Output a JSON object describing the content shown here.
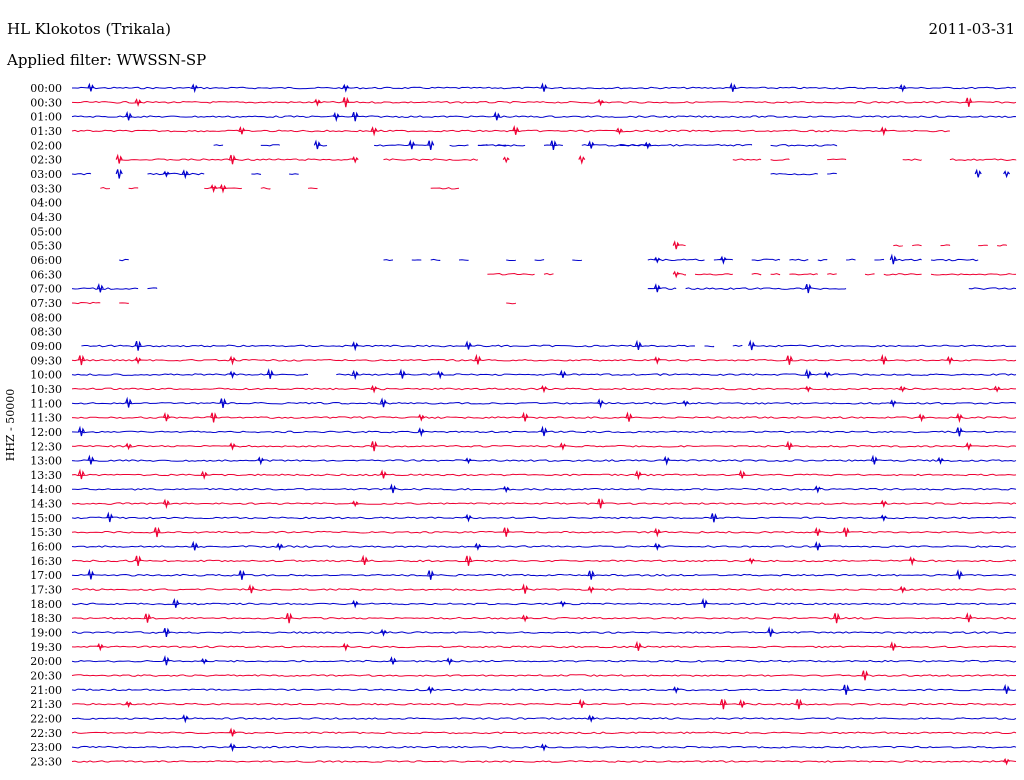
{
  "header": {
    "station": "HL Klokotos (Trikala)",
    "date": "2011-03-31",
    "filter": "Applied filter: WWSSN-SP"
  },
  "chart_data": {
    "type": "line",
    "title": "HL Klokotos (Trikala)",
    "channel_label": "HHZ - 50000",
    "ylabel": "HHZ - 50000",
    "xlabel": "",
    "colors": [
      "#0000cc",
      "#ee0033"
    ],
    "rows": [
      {
        "time": "00:00",
        "color": "#0000cc",
        "segments": [
          [
            0,
            1
          ]
        ],
        "events": [
          0.02,
          0.13,
          0.29,
          0.5,
          0.7,
          0.88
        ]
      },
      {
        "time": "00:30",
        "color": "#ee0033",
        "segments": [
          [
            0,
            1
          ]
        ],
        "events": [
          0.07,
          0.26,
          0.29,
          0.56,
          0.95
        ]
      },
      {
        "time": "01:00",
        "color": "#0000cc",
        "segments": [
          [
            0,
            1
          ]
        ],
        "events": [
          0.06,
          0.28,
          0.3,
          0.45
        ]
      },
      {
        "time": "01:30",
        "color": "#ee0033",
        "segments": [
          [
            0,
            0.93
          ]
        ],
        "events": [
          0.18,
          0.32,
          0.47,
          0.58,
          0.86
        ]
      },
      {
        "time": "02:00",
        "color": "#0000cc",
        "segments": [
          [
            0.15,
            0.16
          ],
          [
            0.2,
            0.22
          ],
          [
            0.26,
            0.27
          ],
          [
            0.32,
            0.38
          ],
          [
            0.4,
            0.42
          ],
          [
            0.43,
            0.44
          ],
          [
            0.45,
            0.46
          ],
          [
            0.43,
            0.48
          ],
          [
            0.5,
            0.52
          ],
          [
            0.54,
            0.61
          ],
          [
            0.58,
            0.72
          ],
          [
            0.74,
            0.81
          ]
        ],
        "events": [
          0.26,
          0.36,
          0.38,
          0.51,
          0.55,
          0.61
        ]
      },
      {
        "time": "02:30",
        "color": "#ee0033",
        "segments": [
          [
            0.05,
            0.3
          ],
          [
            0.33,
            0.43
          ],
          [
            0.7,
            0.73
          ],
          [
            0.74,
            0.76
          ],
          [
            0.8,
            0.82
          ],
          [
            0.88,
            0.9
          ],
          [
            0.93,
            1
          ]
        ],
        "events": [
          0.05,
          0.17,
          0.3,
          0.46,
          0.54
        ]
      },
      {
        "time": "03:00",
        "color": "#0000cc",
        "segments": [
          [
            0,
            0.02
          ],
          [
            0.08,
            0.14
          ],
          [
            0.19,
            0.2
          ],
          [
            0.23,
            0.24
          ],
          [
            0.74,
            0.79
          ],
          [
            0.8,
            0.81
          ]
        ],
        "events": [
          0.05,
          0.1,
          0.12,
          0.96,
          0.99
        ]
      },
      {
        "time": "03:30",
        "color": "#ee0033",
        "segments": [
          [
            0.03,
            0.04
          ],
          [
            0.06,
            0.07
          ],
          [
            0.14,
            0.18
          ],
          [
            0.2,
            0.21
          ],
          [
            0.25,
            0.26
          ],
          [
            0.38,
            0.41
          ]
        ],
        "events": [
          0.15,
          0.16
        ]
      },
      {
        "time": "04:00",
        "color": "#0000cc",
        "segments": [],
        "events": []
      },
      {
        "time": "04:30",
        "color": "#ee0033",
        "segments": [],
        "events": []
      },
      {
        "time": "05:00",
        "color": "#0000cc",
        "segments": [],
        "events": []
      },
      {
        "time": "05:30",
        "color": "#ee0033",
        "segments": [
          [
            0.64,
            0.65
          ],
          [
            0.87,
            0.88
          ],
          [
            0.89,
            0.9
          ],
          [
            0.92,
            0.93
          ],
          [
            0.96,
            0.97
          ],
          [
            0.98,
            0.99
          ]
        ],
        "events": [
          0.64
        ]
      },
      {
        "time": "06:00",
        "color": "#0000cc",
        "segments": [
          [
            0.05,
            0.06
          ],
          [
            0.33,
            0.34
          ],
          [
            0.36,
            0.37
          ],
          [
            0.38,
            0.39
          ],
          [
            0.41,
            0.42
          ],
          [
            0.46,
            0.47
          ],
          [
            0.49,
            0.5
          ],
          [
            0.53,
            0.54
          ],
          [
            0.61,
            0.67
          ],
          [
            0.68,
            0.7
          ],
          [
            0.72,
            0.75
          ],
          [
            0.76,
            0.78
          ],
          [
            0.79,
            0.8
          ],
          [
            0.82,
            0.83
          ],
          [
            0.85,
            0.86
          ],
          [
            0.87,
            0.9
          ],
          [
            0.91,
            0.96
          ]
        ],
        "events": [
          0.62,
          0.69,
          0.87
        ]
      },
      {
        "time": "06:30",
        "color": "#ee0033",
        "segments": [
          [
            0.44,
            0.49
          ],
          [
            0.5,
            0.51
          ],
          [
            0.64,
            0.65
          ],
          [
            0.66,
            0.7
          ],
          [
            0.72,
            0.73
          ],
          [
            0.74,
            0.75
          ],
          [
            0.76,
            0.79
          ],
          [
            0.8,
            0.81
          ],
          [
            0.84,
            0.85
          ],
          [
            0.86,
            0.9
          ],
          [
            0.91,
            1
          ]
        ],
        "events": [
          0.64
        ]
      },
      {
        "time": "07:00",
        "color": "#0000cc",
        "segments": [
          [
            0,
            0.07
          ],
          [
            0.08,
            0.09
          ],
          [
            0.61,
            0.64
          ],
          [
            0.65,
            0.82
          ],
          [
            0.95,
            1
          ]
        ],
        "events": [
          0.03,
          0.62,
          0.78
        ]
      },
      {
        "time": "07:30",
        "color": "#ee0033",
        "segments": [
          [
            0,
            0.03
          ],
          [
            0.05,
            0.06
          ],
          [
            0.46,
            0.47
          ]
        ],
        "events": []
      },
      {
        "time": "08:00",
        "color": "#0000cc",
        "segments": [],
        "events": []
      },
      {
        "time": "08:30",
        "color": "#ee0033",
        "segments": [],
        "events": []
      },
      {
        "time": "09:00",
        "color": "#0000cc",
        "segments": [
          [
            0.01,
            0.66
          ],
          [
            0.67,
            0.68
          ],
          [
            0.7,
            0.71
          ],
          [
            0.72,
            1
          ]
        ],
        "events": [
          0.07,
          0.3,
          0.42,
          0.6,
          0.72
        ]
      },
      {
        "time": "09:30",
        "color": "#ee0033",
        "segments": [
          [
            0,
            1
          ]
        ],
        "events": [
          0.01,
          0.07,
          0.17,
          0.43,
          0.62,
          0.76,
          0.86,
          0.93
        ]
      },
      {
        "time": "10:00",
        "color": "#0000cc",
        "segments": [
          [
            0,
            0.25
          ],
          [
            0.28,
            1
          ]
        ],
        "events": [
          0.17,
          0.21,
          0.3,
          0.35,
          0.39,
          0.52,
          0.78,
          0.8
        ]
      },
      {
        "time": "10:30",
        "color": "#ee0033",
        "segments": [
          [
            0,
            1
          ]
        ],
        "events": [
          0.32,
          0.5,
          0.78,
          0.88,
          0.98
        ]
      },
      {
        "time": "11:00",
        "color": "#0000cc",
        "segments": [
          [
            0,
            1
          ]
        ],
        "events": [
          0.06,
          0.16,
          0.33,
          0.56,
          0.65,
          0.87
        ]
      },
      {
        "time": "11:30",
        "color": "#ee0033",
        "segments": [
          [
            0,
            1
          ]
        ],
        "events": [
          0.1,
          0.15,
          0.37,
          0.48,
          0.59,
          0.9,
          0.94
        ]
      },
      {
        "time": "12:00",
        "color": "#0000cc",
        "segments": [
          [
            0,
            1
          ]
        ],
        "events": [
          0.01,
          0.37,
          0.5,
          0.94
        ]
      },
      {
        "time": "12:30",
        "color": "#ee0033",
        "segments": [
          [
            0,
            1
          ]
        ],
        "events": [
          0.06,
          0.17,
          0.32,
          0.52,
          0.76,
          0.95
        ]
      },
      {
        "time": "13:00",
        "color": "#0000cc",
        "segments": [
          [
            0,
            1
          ]
        ],
        "events": [
          0.02,
          0.2,
          0.42,
          0.63,
          0.85,
          0.92
        ]
      },
      {
        "time": "13:30",
        "color": "#ee0033",
        "segments": [
          [
            0,
            1
          ]
        ],
        "events": [
          0.01,
          0.14,
          0.33,
          0.6,
          0.71
        ]
      },
      {
        "time": "14:00",
        "color": "#0000cc",
        "segments": [
          [
            0,
            1
          ]
        ],
        "events": [
          0.34,
          0.46,
          0.79
        ]
      },
      {
        "time": "14:30",
        "color": "#ee0033",
        "segments": [
          [
            0,
            1
          ]
        ],
        "events": [
          0.1,
          0.3,
          0.56,
          0.86
        ]
      },
      {
        "time": "15:00",
        "color": "#0000cc",
        "segments": [
          [
            0,
            1
          ]
        ],
        "events": [
          0.04,
          0.42,
          0.68,
          0.86
        ]
      },
      {
        "time": "15:30",
        "color": "#ee0033",
        "segments": [
          [
            0,
            1
          ]
        ],
        "events": [
          0.09,
          0.46,
          0.62,
          0.79,
          0.82
        ]
      },
      {
        "time": "16:00",
        "color": "#0000cc",
        "segments": [
          [
            0,
            1
          ]
        ],
        "events": [
          0.13,
          0.22,
          0.43,
          0.62,
          0.79
        ]
      },
      {
        "time": "16:30",
        "color": "#ee0033",
        "segments": [
          [
            0,
            1
          ]
        ],
        "events": [
          0.07,
          0.31,
          0.42,
          0.72,
          0.89
        ]
      },
      {
        "time": "17:00",
        "color": "#0000cc",
        "segments": [
          [
            0,
            1
          ]
        ],
        "events": [
          0.02,
          0.18,
          0.38,
          0.55,
          0.94
        ]
      },
      {
        "time": "17:30",
        "color": "#ee0033",
        "segments": [
          [
            0,
            1
          ]
        ],
        "events": [
          0.19,
          0.48,
          0.55,
          0.88
        ]
      },
      {
        "time": "18:00",
        "color": "#0000cc",
        "segments": [
          [
            0,
            1
          ]
        ],
        "events": [
          0.11,
          0.3,
          0.52,
          0.67
        ]
      },
      {
        "time": "18:30",
        "color": "#ee0033",
        "segments": [
          [
            0,
            1
          ]
        ],
        "events": [
          0.08,
          0.23,
          0.48,
          0.81,
          0.95
        ]
      },
      {
        "time": "19:00",
        "color": "#0000cc",
        "segments": [
          [
            0,
            1
          ]
        ],
        "events": [
          0.1,
          0.33,
          0.74
        ]
      },
      {
        "time": "19:30",
        "color": "#ee0033",
        "segments": [
          [
            0,
            1
          ]
        ],
        "events": [
          0.03,
          0.29,
          0.6,
          0.87
        ]
      },
      {
        "time": "20:00",
        "color": "#0000cc",
        "segments": [
          [
            0,
            1
          ]
        ],
        "events": [
          0.1,
          0.14,
          0.34,
          0.4
        ]
      },
      {
        "time": "20:30",
        "color": "#ee0033",
        "segments": [
          [
            0,
            1
          ]
        ],
        "events": [
          0.84
        ]
      },
      {
        "time": "21:00",
        "color": "#0000cc",
        "segments": [
          [
            0,
            1
          ]
        ],
        "events": [
          0.38,
          0.64,
          0.82,
          0.99
        ]
      },
      {
        "time": "21:30",
        "color": "#ee0033",
        "segments": [
          [
            0,
            1
          ]
        ],
        "events": [
          0.06,
          0.54,
          0.69,
          0.71,
          0.77
        ]
      },
      {
        "time": "22:00",
        "color": "#0000cc",
        "segments": [
          [
            0,
            1
          ]
        ],
        "events": [
          0.12,
          0.55
        ]
      },
      {
        "time": "22:30",
        "color": "#ee0033",
        "segments": [
          [
            0,
            1
          ]
        ],
        "events": [
          0.17
        ]
      },
      {
        "time": "23:00",
        "color": "#0000cc",
        "segments": [
          [
            0,
            1
          ]
        ],
        "events": [
          0.17,
          0.5
        ]
      },
      {
        "time": "23:30",
        "color": "#ee0033",
        "segments": [
          [
            0,
            1
          ]
        ],
        "events": [
          0.99
        ]
      }
    ]
  }
}
